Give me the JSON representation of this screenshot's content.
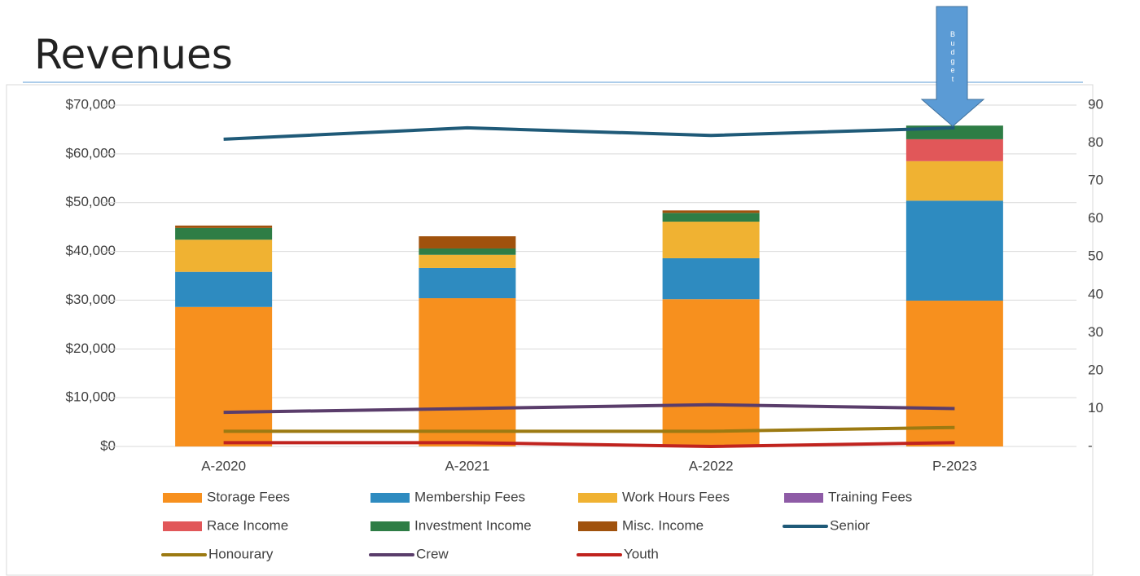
{
  "title": "Revenues",
  "chart_data": {
    "type": "bar",
    "stacked": true,
    "annotation": "Budget",
    "categories": [
      "A-2020",
      "A-2021",
      "A-2022",
      "P-2023"
    ],
    "series": [
      {
        "name": "Storage Fees",
        "type": "bar",
        "color": "#f7901e",
        "values": [
          28600,
          30400,
          30200,
          29900
        ]
      },
      {
        "name": "Membership Fees",
        "type": "bar",
        "color": "#2e8bc0",
        "values": [
          7200,
          6200,
          8400,
          20500
        ]
      },
      {
        "name": "Work Hours Fees",
        "type": "bar",
        "color": "#f0b232",
        "values": [
          6600,
          2700,
          7500,
          8100
        ]
      },
      {
        "name": "Training Fees",
        "type": "bar",
        "color": "#8e5ba6",
        "values": [
          0,
          0,
          0,
          0
        ]
      },
      {
        "name": "Race Income",
        "type": "bar",
        "color": "#e15759",
        "values": [
          0,
          0,
          0,
          4500
        ]
      },
      {
        "name": "Investment Income",
        "type": "bar",
        "color": "#2e7d45",
        "values": [
          2400,
          1300,
          1800,
          2800
        ]
      },
      {
        "name": "Misc. Income",
        "type": "bar",
        "color": "#a0520d",
        "values": [
          500,
          2500,
          500,
          0
        ]
      },
      {
        "name": "Senior",
        "type": "line",
        "axis": "y2",
        "color": "#1f5a78",
        "values": [
          81,
          84,
          82,
          84
        ]
      },
      {
        "name": "Honourary",
        "type": "line",
        "axis": "y2",
        "color": "#9c7a12",
        "values": [
          4,
          4,
          4,
          5
        ]
      },
      {
        "name": "Crew",
        "type": "line",
        "axis": "y2",
        "color": "#5a3d6b",
        "values": [
          9,
          10,
          11,
          10
        ]
      },
      {
        "name": "Youth",
        "type": "line",
        "axis": "y2",
        "color": "#c0231e",
        "values": [
          1,
          1,
          0,
          1
        ]
      }
    ],
    "ylim": [
      0,
      70000
    ],
    "yticks": [
      {
        "value": 0,
        "label": "$0"
      },
      {
        "value": 10000,
        "label": "$10,000"
      },
      {
        "value": 20000,
        "label": "$20,000"
      },
      {
        "value": 30000,
        "label": "$30,000"
      },
      {
        "value": 40000,
        "label": "$40,000"
      },
      {
        "value": 50000,
        "label": "$50,000"
      },
      {
        "value": 60000,
        "label": "$60,000"
      },
      {
        "value": 70000,
        "label": "$70,000"
      }
    ],
    "y2lim": [
      0,
      90
    ],
    "y2ticks": [
      {
        "value": 0,
        "label": "-"
      },
      10,
      20,
      30,
      40,
      50,
      60,
      70,
      80,
      90
    ],
    "grid": true,
    "legend": "bottom"
  }
}
